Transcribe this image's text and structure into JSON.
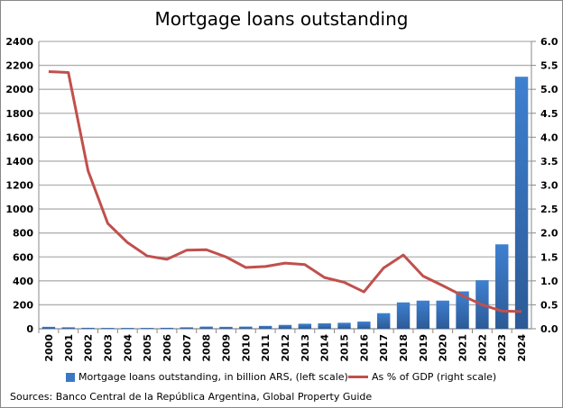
{
  "chart_data": {
    "type": "bar+line",
    "title": "Mortgage loans outstanding",
    "categories": [
      "2000",
      "2001",
      "2002",
      "2003",
      "2004",
      "2005",
      "2006",
      "2007",
      "2008",
      "2009",
      "2010",
      "2011",
      "2012",
      "2013",
      "2014",
      "2015",
      "2016",
      "2017",
      "2018",
      "2019",
      "2020",
      "2021",
      "2022",
      "2023",
      "2024"
    ],
    "series": [
      {
        "name": "Mortgage loans outstanding, in billion ARS, (left scale)",
        "type": "bar",
        "axis": "left",
        "color": "#3a78c4",
        "values": [
          16,
          12,
          8,
          7,
          7,
          7,
          8,
          12,
          18,
          16,
          18,
          24,
          32,
          42,
          45,
          50,
          60,
          130,
          220,
          235,
          235,
          312,
          405,
          705,
          2105
        ]
      },
      {
        "name": "As % of GDP (right scale)",
        "type": "line",
        "axis": "right",
        "color": "#c0504d",
        "values": [
          5.37,
          5.35,
          3.3,
          2.2,
          1.8,
          1.52,
          1.45,
          1.64,
          1.65,
          1.5,
          1.28,
          1.3,
          1.37,
          1.34,
          1.07,
          0.97,
          0.77,
          1.27,
          1.54,
          1.1,
          0.9,
          0.69,
          0.5,
          0.37,
          0.36
        ]
      }
    ],
    "yleft": {
      "min": 0,
      "max": 2400,
      "step": 200,
      "ticks": [
        "0",
        "200",
        "400",
        "600",
        "800",
        "1000",
        "1200",
        "1400",
        "1600",
        "1800",
        "2000",
        "2200",
        "2400"
      ]
    },
    "yright": {
      "min": 0,
      "max": 6,
      "step": 0.5,
      "ticks": [
        "0.0",
        "0.5",
        "1.0",
        "1.5",
        "2.0",
        "2.5",
        "3.0",
        "3.5",
        "4.0",
        "4.5",
        "5.0",
        "5.5",
        "6.0"
      ]
    },
    "grid": true,
    "legend": "bottom",
    "source": "Sources: Banco Central de la República Argentina, Global Property Guide"
  }
}
